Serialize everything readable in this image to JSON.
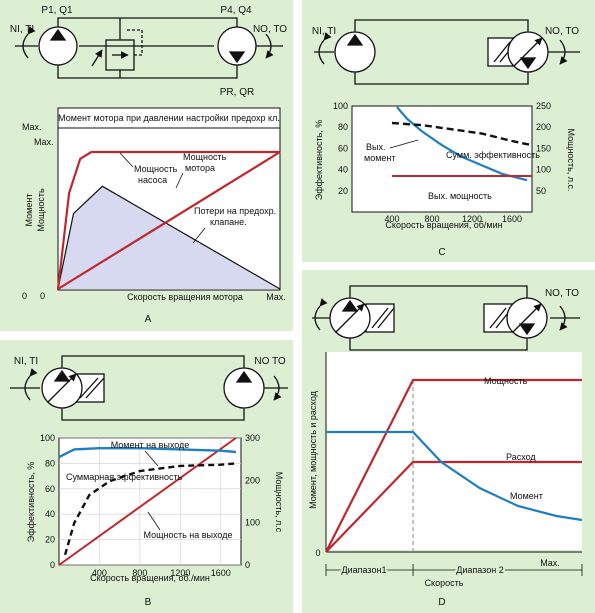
{
  "colors": {
    "panel_bg": "#dcefd2",
    "chart_bg": "#ffffff",
    "red": "#c0272d",
    "blue": "#1f7fc1",
    "black": "#111111",
    "shade": "#d6d9f0"
  },
  "panel_a": {
    "letter": "A",
    "labels": {
      "p1q1": "P1, Q1",
      "p4q4": "P4, Q4",
      "niti": "NI, TI",
      "noto": "NO, TO",
      "prqr": "PR, QR"
    },
    "chart_data": {
      "type": "line",
      "title": "Момент мотора при давлении настройки предохр кл.",
      "xlabel": "Скорость вращения мотора",
      "ylabel_1": "Момент",
      "ylabel_2": "Мощность",
      "x_max_label": "Max.",
      "y_max_label_1": "Max.",
      "y_max_label_2": "Max.",
      "zero_label": "0",
      "annotations": {
        "pump_power_1": "Мощность",
        "pump_power_2": "насоса",
        "motor_power_1": "Мощность",
        "motor_power_2": "мотора",
        "losses_1": "Потери на предохр.",
        "losses_2": "клапане."
      },
      "xlim": [
        0,
        1
      ],
      "ylim": [
        0,
        1
      ],
      "series": [
        {
          "key": "pump_power",
          "x": [
            0,
            0.05,
            0.1,
            0.15,
            1
          ],
          "y": [
            0,
            0.7,
            0.95,
            1,
            1
          ]
        },
        {
          "key": "motor_power",
          "x": [
            0,
            1
          ],
          "y": [
            0,
            1
          ]
        },
        {
          "key": "losses",
          "x": [
            0,
            0.07,
            0.2,
            1
          ],
          "y": [
            0,
            0.55,
            0.75,
            0
          ]
        }
      ]
    }
  },
  "panel_b": {
    "letter": "B",
    "labels": {
      "niti": "NI, TI",
      "noto": "NO TO"
    },
    "chart_data": {
      "type": "line",
      "xlabel": "Скорость вращения, об./мин",
      "ylabel_left": "Эффективность, %",
      "ylabel_right": "Мощность, л.с",
      "xticks": [
        400,
        800,
        1200,
        1600
      ],
      "xlim": [
        0,
        1800
      ],
      "ylim_left": [
        0,
        100
      ],
      "yticks_left": [
        0,
        20,
        40,
        60,
        80,
        100
      ],
      "ylim_right": [
        0,
        300
      ],
      "yticks_right": [
        0,
        100,
        200,
        300
      ],
      "annotations": {
        "torque_out": "Момент на выходе",
        "total_eff": "Суммарная эффективность",
        "power_out": "Мощность на выходе"
      },
      "series": [
        {
          "key": "torque_out",
          "axis": "left",
          "x": [
            0,
            150,
            400,
            800,
            1200,
            1600,
            1750
          ],
          "y": [
            85,
            91,
            92,
            92,
            91,
            90,
            89
          ]
        },
        {
          "key": "total_eff",
          "axis": "left",
          "x": [
            60,
            150,
            300,
            500,
            800,
            1200,
            1600,
            1750
          ],
          "y": [
            8,
            33,
            55,
            66,
            74,
            78,
            79,
            80
          ]
        },
        {
          "key": "power_out",
          "axis": "right",
          "x": [
            0,
            1750
          ],
          "y": [
            0,
            300
          ]
        }
      ]
    }
  },
  "panel_c": {
    "letter": "C",
    "labels": {
      "niti": "NI, TI",
      "noto": "NO, TO"
    },
    "chart_data": {
      "type": "line",
      "xlabel": "Скорость вращения, об/мин",
      "ylabel_left": "Эффективность, %",
      "ylabel_right": "Мощность, л.с.",
      "xticks": [
        400,
        800,
        1200,
        1600
      ],
      "xlim": [
        0,
        1800
      ],
      "ylim_left": [
        0,
        100
      ],
      "yticks_left": [
        20,
        40,
        60,
        80,
        100
      ],
      "ylim_right": [
        0,
        250
      ],
      "yticks_right": [
        50,
        100,
        150,
        200,
        250
      ],
      "annotations": {
        "torque_out_1": "Вых.",
        "torque_out_2": "момент",
        "total_eff": "Сумм. эффективность",
        "power_out": "Вых. мощность"
      },
      "series": [
        {
          "key": "torque_out",
          "axis": "left",
          "x": [
            450,
            550,
            700,
            900,
            1100,
            1300,
            1500,
            1750
          ],
          "y": [
            99,
            88,
            76,
            63,
            52,
            44,
            36,
            30
          ]
        },
        {
          "key": "total_eff",
          "axis": "left",
          "x": [
            400,
            700,
            1000,
            1300,
            1600,
            1800
          ],
          "y": [
            84,
            82,
            78,
            74,
            67,
            63
          ]
        },
        {
          "key": "power_out",
          "axis": "left",
          "x": [
            400,
            1800
          ],
          "y": [
            34,
            34
          ]
        }
      ]
    }
  },
  "panel_d": {
    "letter": "D",
    "labels": {
      "noto": "NO, TO"
    },
    "chart_data": {
      "type": "line",
      "ylabel": "Момент, мощность и расход",
      "xlabel": "Скорость",
      "range1": "Диапазон1",
      "range2": "Диапазон 2",
      "x_max_label": "Max.",
      "zero_label": "0",
      "annotations": {
        "power": "Мощность",
        "flow": "Расход",
        "torque": "Момент"
      },
      "xlim": [
        0,
        1
      ],
      "ylim": [
        0,
        1
      ],
      "series": [
        {
          "key": "power",
          "x": [
            0,
            0.34,
            1
          ],
          "y": [
            0,
            0.86,
            0.86
          ]
        },
        {
          "key": "flow",
          "x": [
            0,
            0.34,
            1
          ],
          "y": [
            0,
            0.45,
            0.45
          ]
        },
        {
          "key": "torque",
          "x": [
            0,
            0.34,
            0.45,
            0.6,
            0.75,
            0.9,
            1
          ],
          "y": [
            0.6,
            0.6,
            0.45,
            0.32,
            0.23,
            0.18,
            0.16
          ]
        }
      ]
    }
  }
}
